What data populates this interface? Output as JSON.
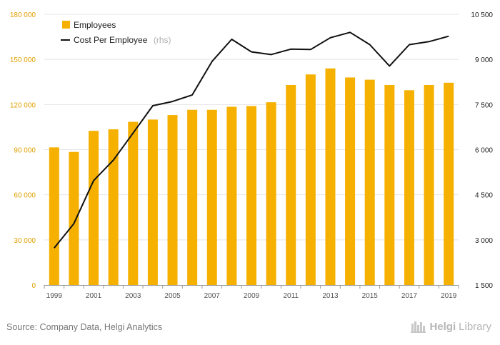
{
  "chart_data": {
    "type": "bar+line",
    "categories": [
      "1999",
      "2000",
      "2001",
      "2002",
      "2003",
      "2004",
      "2005",
      "2006",
      "2007",
      "2008",
      "2009",
      "2010",
      "2011",
      "2012",
      "2013",
      "2014",
      "2015",
      "2016",
      "2017",
      "2018",
      "2019"
    ],
    "x_tick_labels": [
      "1999",
      "2001",
      "2003",
      "2005",
      "2007",
      "2009",
      "2011",
      "2013",
      "2015",
      "2017",
      "2019"
    ],
    "series": [
      {
        "name": "Employees",
        "type": "bar",
        "axis": "left",
        "color": "#f5b000",
        "values": [
          91500,
          88500,
          102500,
          103500,
          108500,
          110000,
          113000,
          116500,
          116500,
          118500,
          119000,
          121500,
          133000,
          140000,
          144000,
          138000,
          136500,
          133000,
          129500,
          133000,
          134500
        ]
      },
      {
        "name": "Cost Per Employee",
        "name_suffix": "(rhs)",
        "type": "line",
        "axis": "right",
        "color": "#111111",
        "values": [
          2730,
          3540,
          4970,
          5650,
          6550,
          7460,
          7600,
          7820,
          8930,
          9670,
          9250,
          9160,
          9340,
          9330,
          9720,
          9900,
          9490,
          8780,
          9490,
          9590,
          9770
        ]
      }
    ],
    "y_left": {
      "lim": [
        0,
        180000
      ],
      "ticks": [
        "0",
        "30 000",
        "60 000",
        "90 000",
        "120 000",
        "150 000",
        "180 000"
      ],
      "tick_values": [
        0,
        30000,
        60000,
        90000,
        120000,
        150000,
        180000
      ],
      "color": "#e0a100"
    },
    "y_right": {
      "lim": [
        1500,
        10500
      ],
      "ticks": [
        "1 500",
        "3 000",
        "4 500",
        "6 000",
        "7 500",
        "9 000",
        "10 500"
      ],
      "tick_values": [
        1500,
        3000,
        4500,
        6000,
        7500,
        9000,
        10500
      ],
      "color": "#222222"
    },
    "grid": true,
    "legend_position": "top-left"
  },
  "footer": {
    "source": "Source: Company Data, Helgi Analytics",
    "logo_name": "Helgi",
    "logo_suffix": "Library"
  }
}
